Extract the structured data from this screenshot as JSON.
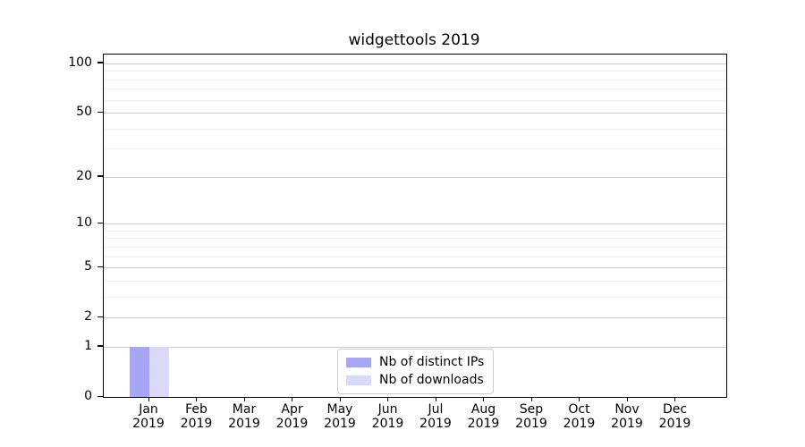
{
  "chart_data": {
    "type": "bar",
    "title": "widgettools 2019",
    "categories": [
      "Jan 2019",
      "Feb 2019",
      "Mar 2019",
      "Apr 2019",
      "May 2019",
      "Jun 2019",
      "Jul 2019",
      "Aug 2019",
      "Sep 2019",
      "Oct 2019",
      "Nov 2019",
      "Dec 2019"
    ],
    "series": [
      {
        "name": "Nb of distinct IPs",
        "color": "#a6a6f4",
        "values": [
          1,
          0,
          0,
          0,
          0,
          0,
          0,
          0,
          0,
          0,
          0,
          0
        ]
      },
      {
        "name": "Nb of downloads",
        "color": "#d9d9fa",
        "values": [
          1,
          0,
          0,
          0,
          0,
          0,
          0,
          0,
          0,
          0,
          0,
          0
        ]
      }
    ],
    "xlabel": "",
    "ylabel": "",
    "yscale": "log10(1+v)",
    "ylim": [
      0,
      113
    ],
    "yticks_major": [
      0,
      1,
      2,
      5,
      10,
      20,
      50,
      100
    ],
    "yticks_minor": [
      3,
      4,
      6,
      7,
      8,
      9,
      30,
      40,
      60,
      70,
      80,
      90
    ],
    "grid": "horizontal",
    "legend_position": "lower center"
  },
  "colors": {
    "grid_major": "#cccccc",
    "grid_minor": "#eeeeee",
    "axis": "#000000",
    "background": "#ffffff",
    "legend_border": "#cccccc"
  }
}
